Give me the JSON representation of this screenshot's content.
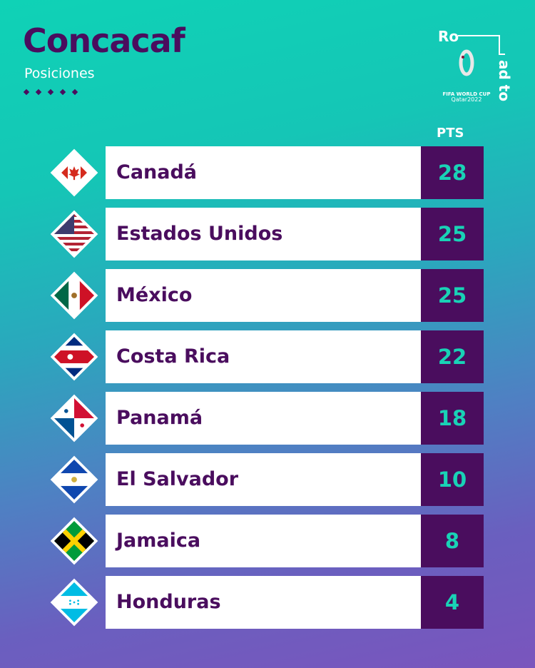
{
  "header": {
    "title": "Concacaf",
    "subtitle": "Posiciones",
    "logo_text": "Road to FIFA WORLD CUP Qatar2022"
  },
  "table": {
    "points_header": "PTS",
    "rows": [
      {
        "team": "Canadá",
        "pts": "28",
        "flag": "canada"
      },
      {
        "team": "Estados Unidos",
        "pts": "25",
        "flag": "usa"
      },
      {
        "team": "México",
        "pts": "25",
        "flag": "mexico"
      },
      {
        "team": "Costa Rica",
        "pts": "22",
        "flag": "costa-rica"
      },
      {
        "team": "Panamá",
        "pts": "18",
        "flag": "panama"
      },
      {
        "team": "El Salvador",
        "pts": "10",
        "flag": "el-salvador"
      },
      {
        "team": "Jamaica",
        "pts": "8",
        "flag": "jamaica"
      },
      {
        "team": "Honduras",
        "pts": "4",
        "flag": "honduras"
      }
    ]
  },
  "colors": {
    "purple": "#4a0d5e",
    "teal": "#19d2b6"
  }
}
